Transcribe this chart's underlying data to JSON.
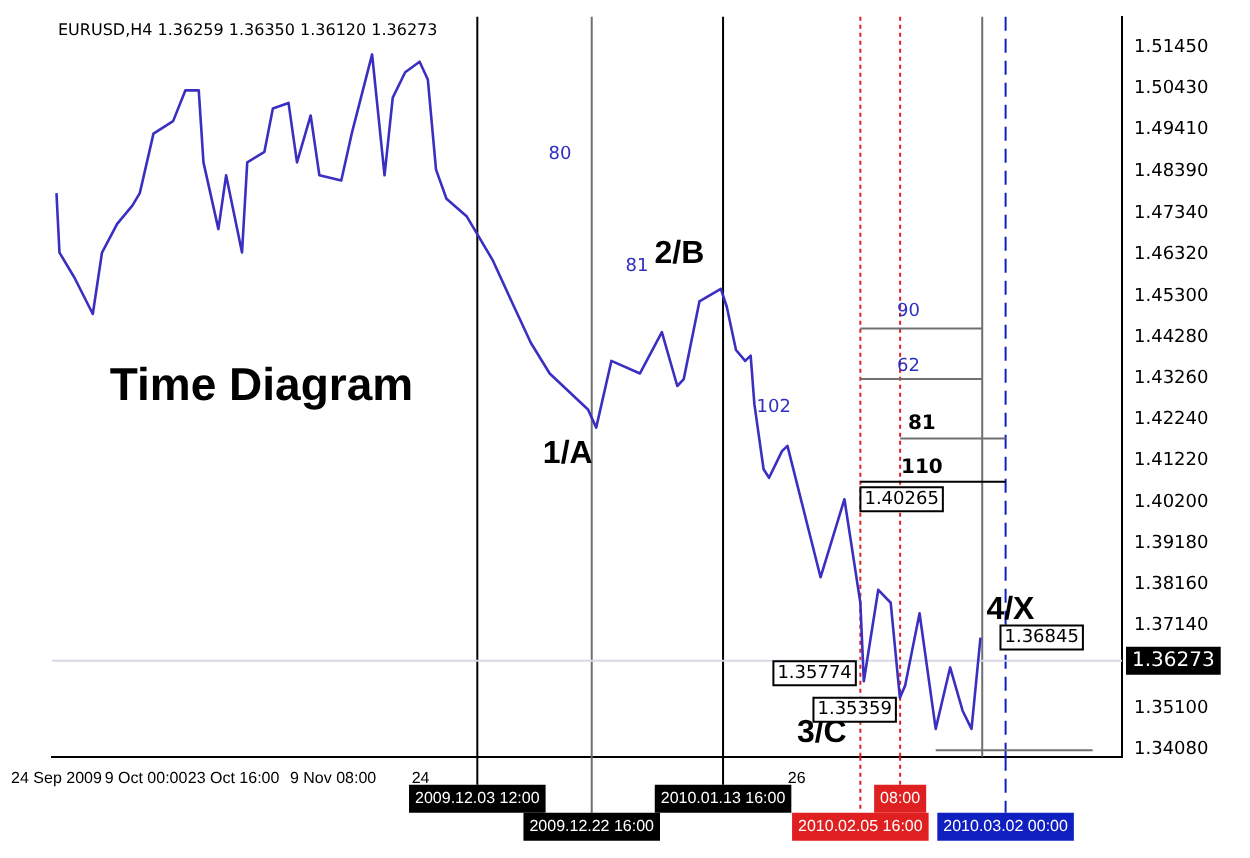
{
  "chart_data": {
    "type": "line",
    "title": "EURUSD,H4 1.36259 1.36350 1.36120 1.36273",
    "x": [
      "2009-09-24T00:00",
      "2009-09-24T12:00",
      "2009-09-27T01:00",
      "2009-09-30T02:00",
      "2009-10-01T15:00",
      "2009-10-04T04:00",
      "2009-10-06T17:00",
      "2009-10-07T23:00",
      "2009-10-10T06:00",
      "2009-10-13T13:00",
      "2009-10-15T14:00",
      "2009-10-17T20:00",
      "2009-10-18T15:00",
      "2009-10-21T03:00",
      "2009-10-22T10:00",
      "2009-10-25T02:00",
      "2009-10-25T23:00",
      "2009-10-28T20:00",
      "2009-10-30T06:00",
      "2009-11-01T21:00",
      "2009-11-03T07:00",
      "2009-11-05T14:00",
      "2009-11-07T01:00",
      "2009-11-10T17:00",
      "2009-11-12T11:00",
      "2009-11-15T21:00",
      "2009-11-17T23:00",
      "2009-11-19T08:00",
      "2009-11-21T10:00",
      "2009-11-23T20:00",
      "2009-11-25T05:00",
      "2009-11-26T14:00",
      "2009-11-28T08:00",
      "2009-12-01T18:00",
      "2009-12-06T01:00",
      "2009-12-09T06:00",
      "2009-12-12T11:00",
      "2009-12-15T15:00",
      "2009-12-22T01:00",
      "2009-12-23T10:00",
      "2009-12-25T23:00",
      "2009-12-30T18:00",
      "2010-01-03T10:00",
      "2010-01-06T00:00",
      "2010-01-07T02:00",
      "2010-01-09T17:00",
      "2010-01-13T07:00",
      "2010-01-14T07:00",
      "2010-01-15T20:00",
      "2010-01-17T09:00",
      "2010-01-18T07:00",
      "2010-01-18T22:00",
      "2010-01-20T11:00",
      "2010-01-21T09:00",
      "2010-01-23T13:00",
      "2010-01-24T11:00",
      "2010-01-30T00:00",
      "2010-02-03T00:00",
      "2010-02-05T16:00",
      "2010-02-06T06:00",
      "2010-02-08T16:00",
      "2010-02-10T18:00",
      "2010-02-12T07:00",
      "2010-02-13T04:00",
      "2010-02-15T14:00",
      "2010-02-18T07:00",
      "2010-02-20T17:00",
      "2010-02-22T19:00",
      "2010-02-24T07:00",
      "2010-02-25T19:00"
    ],
    "series": [
      {
        "color": "#3a2fc0",
        "values": [
          1.4784,
          1.4637,
          1.4574,
          1.4485,
          1.4637,
          1.4708,
          1.4753,
          1.4784,
          1.4931,
          1.4962,
          1.5038,
          1.5038,
          1.486,
          1.4695,
          1.4828,
          1.4637,
          1.486,
          1.4886,
          1.4993,
          1.5007,
          1.486,
          1.4976,
          1.4828,
          1.4815,
          1.4931,
          1.5127,
          1.4828,
          1.502,
          1.5083,
          1.5109,
          1.5065,
          1.4842,
          1.477,
          1.4726,
          1.4619,
          1.4516,
          1.4414,
          1.4338,
          1.4249,
          1.4204,
          1.4369,
          1.4338,
          1.444,
          1.4307,
          1.4324,
          1.4516,
          1.4547,
          1.4503,
          1.4396,
          1.4369,
          1.4382,
          1.4262,
          1.4101,
          1.408,
          1.4146,
          1.4159,
          1.3834,
          1.4027,
          1.3771,
          1.3577,
          1.3803,
          1.3771,
          1.3536,
          1.3566,
          1.3745,
          1.3459,
          1.3611,
          1.3504,
          1.3459,
          1.3685
        ]
      },
      {
        "color": "#707070",
        "x": [
          "2010-02-05T16:00",
          "2010-02-26T02:00"
        ],
        "values": [
          1.4449,
          1.4449
        ]
      },
      {
        "color": "#707070",
        "x": [
          "2010-02-05T16:00",
          "2010-02-26T02:00"
        ],
        "values": [
          1.4324,
          1.4324
        ]
      },
      {
        "color": "#707070",
        "x": [
          "2010-02-12T08:00",
          "2010-03-02T00:00"
        ],
        "values": [
          1.4177,
          1.4177
        ]
      },
      {
        "color": "#000000",
        "x": [
          "2010-02-05T16:00",
          "2010-03-02T00:00"
        ],
        "values": [
          1.407,
          1.407
        ]
      },
      {
        "color": "#707070",
        "x": [
          "2010-02-18T07:00",
          "2010-03-16T14:00"
        ],
        "values": [
          1.3406,
          1.3406
        ]
      }
    ],
    "xlim": [
      "2009-09-23T06:00",
      "2010-03-21T12:00"
    ],
    "xticks": [
      {
        "value": "2009-09-24",
        "label": "24 Sep 2009"
      },
      {
        "value": "2009-10-09",
        "label": "9 Oct 00:00"
      },
      {
        "value": "2009-10-23T16:00",
        "label": "23 Oct 16:00"
      },
      {
        "value": "2009-11-09T08:00",
        "label": "9 Nov 08:00"
      },
      {
        "value": "2009-11-24",
        "label": "24"
      },
      {
        "value": "2010-01-26",
        "label": "26"
      }
    ],
    "ylim": [
      1.339,
      1.522
    ],
    "yticks": [
      {
        "value": 1.5145,
        "label": "1.51450"
      },
      {
        "value": 1.5043,
        "label": "1.50430"
      },
      {
        "value": 1.4941,
        "label": "1.49410"
      },
      {
        "value": 1.4839,
        "label": "1.48390"
      },
      {
        "value": 1.4734,
        "label": "1.47340"
      },
      {
        "value": 1.4632,
        "label": "1.46320"
      },
      {
        "value": 1.453,
        "label": "1.45300"
      },
      {
        "value": 1.4428,
        "label": "1.44280"
      },
      {
        "value": 1.4326,
        "label": "1.43260"
      },
      {
        "value": 1.4224,
        "label": "1.42240"
      },
      {
        "value": 1.4122,
        "label": "1.41220"
      },
      {
        "value": 1.402,
        "label": "1.40200"
      },
      {
        "value": 1.3918,
        "label": "1.39180"
      },
      {
        "value": 1.3816,
        "label": "1.38160"
      },
      {
        "value": 1.3714,
        "label": "1.37140"
      },
      {
        "value": 1.351,
        "label": "1.35100"
      },
      {
        "value": 1.3408,
        "label": "1.34080"
      }
    ],
    "legend": false,
    "marker": "none",
    "line_style": "solid",
    "ref_lines": [
      {
        "axis": "x",
        "value": "2009-12-03T12:00",
        "label": "2009.12.03 12:00",
        "color": "#000000",
        "line_style": "solid"
      },
      {
        "axis": "x",
        "value": "2009-12-22T16:00",
        "label": "2009.12.22 16:00",
        "color": "#707070",
        "line_style": "solid"
      },
      {
        "axis": "x",
        "value": "2010-01-13T16:00",
        "label": "2010.01.13 16:00",
        "color": "#000000",
        "line_style": "solid"
      },
      {
        "axis": "x",
        "value": "2010-02-05T16:00",
        "label": "2010.02.05 16:00",
        "color": "#e02020",
        "line_style": "dotted"
      },
      {
        "axis": "x",
        "value": "2010-02-12T08:00",
        "label": "08:00",
        "color": "#e02020",
        "line_style": "dotted"
      },
      {
        "axis": "x",
        "value": "2010-02-26T02:00",
        "color": "#707070",
        "line_style": "solid"
      },
      {
        "axis": "x",
        "value": "2010-03-02T00:00",
        "label": "2010.03.02 00:00",
        "color": "#1020c0",
        "line_style": "dashed"
      },
      {
        "axis": "y",
        "value": 1.36273,
        "label": "1.36273",
        "color": "#d8d8e8",
        "line_style": "solid"
      }
    ],
    "annotations": [
      "Time Diagram",
      "80",
      "81",
      "102",
      "90",
      "62",
      "81",
      "110",
      "1/A",
      "2/B",
      "3/C",
      "4/X",
      {
        "text": "1.40265",
        "x": "2010-02-03T00:00",
        "y": 1.4027
      },
      {
        "text": "1.35774",
        "x": "2010-02-06T06:00",
        "y": 1.3577
      },
      {
        "text": "1.35359",
        "x": "2010-02-12T07:00",
        "y": 1.3536
      },
      {
        "text": "1.36845",
        "x": "2010-02-25T19:00",
        "y": 1.3685
      }
    ]
  }
}
